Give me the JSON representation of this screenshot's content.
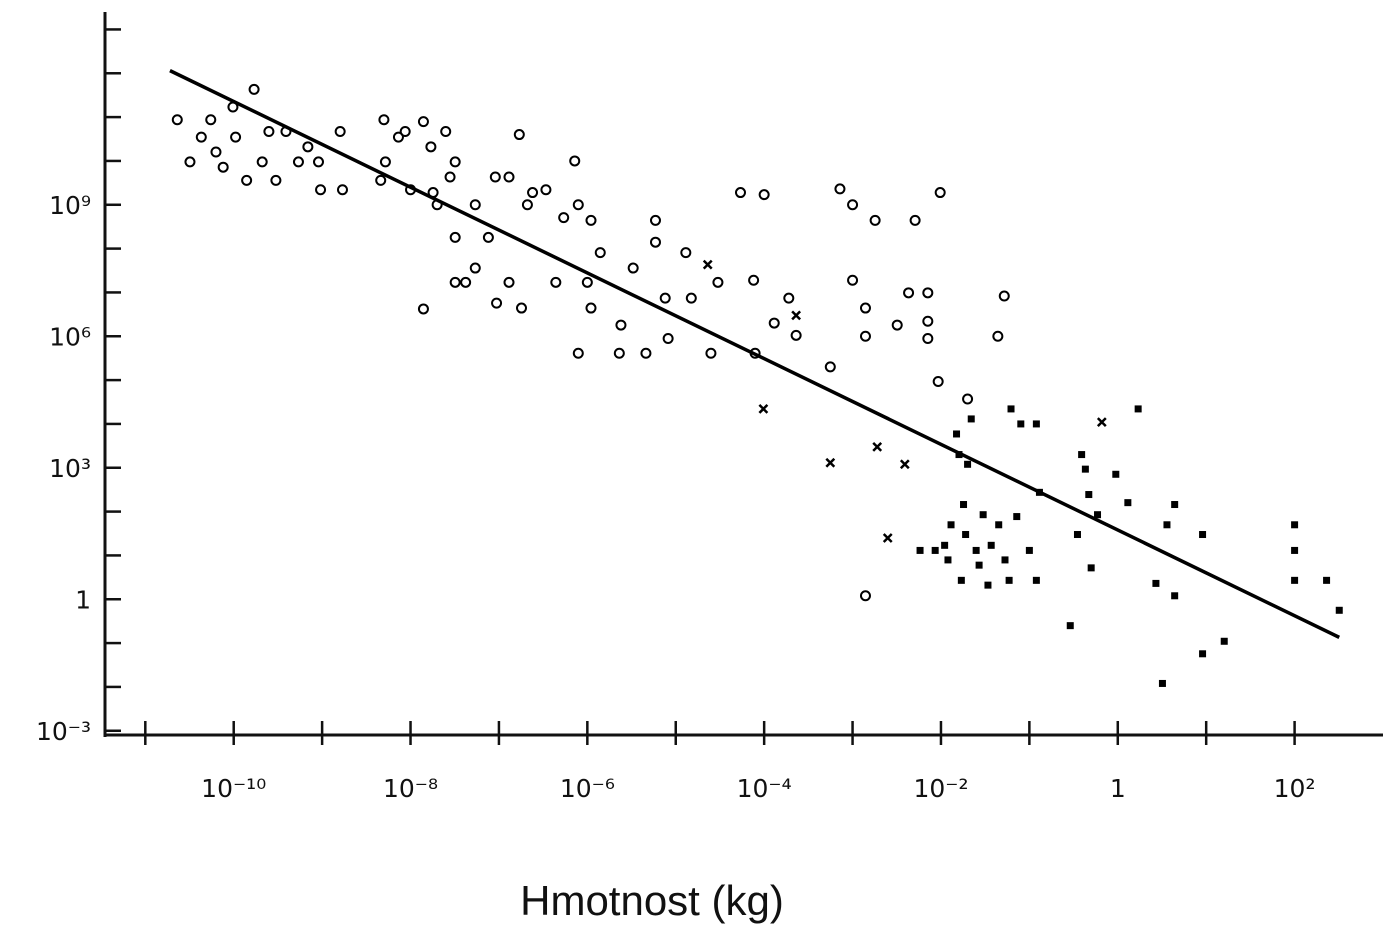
{
  "chart_data": {
    "type": "scatter",
    "xlabel": "Hmotnost (kg)",
    "xscale": "log",
    "yscale": "log",
    "xlim": [
      3.5e-12,
      1000
    ],
    "ylim": [
      0.0008,
      25000000000000.0
    ],
    "xticks": [
      {
        "value": 1e-10,
        "label": "10⁻¹⁰"
      },
      {
        "value": 1e-08,
        "label": "10⁻⁸"
      },
      {
        "value": 1e-06,
        "label": "10⁻⁶"
      },
      {
        "value": 0.0001,
        "label": "10⁻⁴"
      },
      {
        "value": 0.01,
        "label": "10⁻²"
      },
      1,
      {
        "value": 100,
        "label": "10²"
      }
    ],
    "xminor_ticks": [
      1e-11,
      1e-09,
      1e-07,
      1e-05,
      0.001,
      0.1,
      10
    ],
    "yticks": [
      {
        "value": 0.001,
        "label": "10⁻³"
      },
      1,
      {
        "value": 1000,
        "label": "10³"
      },
      {
        "value": 1000000,
        "label": "10⁶"
      },
      {
        "value": 1000000000,
        "label": "10⁹"
      }
    ],
    "yminor_ticks": [
      0.01,
      0.1,
      10,
      100,
      10000,
      100000,
      10000000,
      100000000,
      10000000000.0,
      100000000000.0,
      1000000000000.0,
      10000000000000.0
    ],
    "series": [
      {
        "marker": "circle",
        "color": "#000000",
        "x": [
          2.3e-11,
          3.2e-11,
          4.3e-11,
          5.5e-11,
          6.3e-11,
          7.6e-11,
          9.8e-11,
          1.05e-10,
          1.4e-10,
          1.7e-10,
          2.1e-10,
          2.5e-10,
          3e-10,
          3.9e-10,
          5.4e-10,
          6.9e-10,
          9.1e-10,
          9.6e-10,
          1.6e-09,
          1.7e-09,
          5e-09,
          5.2e-09,
          4.6e-09,
          7.3e-09,
          8.7e-09,
          1e-08,
          1.4e-08,
          1.4e-08,
          1.7e-08,
          1.8e-08,
          2e-08,
          2.5e-08,
          2.8e-08,
          3.2e-08,
          3.2e-08,
          3.2e-08,
          4.2e-08,
          5.4e-08,
          5.4e-08,
          7.6e-08,
          9.1e-08,
          9.4e-08,
          1.3e-07,
          1.3e-07,
          1.7e-07,
          1.8e-07,
          2.1e-07,
          2.4e-07,
          3.4e-07,
          4.4e-07,
          5.4e-07,
          7.2e-07,
          7.9e-07,
          7.9e-07,
          1.1e-06,
          1e-06,
          1.1e-06,
          1.4e-06,
          2.3e-06,
          2.4e-06,
          3.3e-06,
          4.6e-06,
          5.9e-06,
          5.9e-06,
          7.6e-06,
          8.2e-06,
          1.3e-05,
          1.5e-05,
          2.5e-05,
          3e-05,
          5.4e-05,
          7.6e-05,
          7.9e-05,
          0.0001,
          0.00013,
          0.00019,
          0.00023,
          0.00056,
          0.00072,
          0.001,
          0.001,
          0.0014,
          0.0014,
          0.0014,
          0.0018,
          0.0032,
          0.0043,
          0.0051,
          0.0071,
          0.0071,
          0.0071,
          0.0093,
          0.0098,
          0.02,
          0.044,
          0.052
        ],
        "values": [
          87000000000.0,
          9500000000.0,
          35000000000.0,
          87000000000.0,
          16000000000.0,
          7200000000.0,
          170000000000.0,
          35000000000.0,
          3600000000.0,
          430000000000.0,
          9500000000.0,
          47000000000.0,
          3600000000.0,
          47000000000.0,
          9500000000.0,
          21000000000.0,
          9500000000.0,
          2200000000.0,
          47000000000.0,
          2200000000.0,
          87000000000.0,
          9500000000.0,
          3600000000.0,
          35000000000.0,
          47000000000.0,
          2200000000.0,
          79000000000.0,
          4200000,
          21000000000.0,
          1900000000.0,
          1000000000.0,
          47000000000.0,
          4300000000.0,
          9500000000.0,
          180000000,
          17000000,
          17000000,
          1000000000.0,
          36000000,
          180000000,
          4300000000.0,
          5700000,
          4300000000.0,
          17000000,
          40000000000.0,
          4400000,
          1000000000.0,
          1900000000.0,
          2200000000.0,
          17000000,
          510000000,
          10000000000.0,
          1000000000.0,
          410000,
          440000000,
          17000000,
          4400000,
          81000000,
          410000,
          1800000,
          36000000,
          410000,
          440000000,
          140000000,
          7400000,
          890000,
          81000000,
          7400000,
          410000,
          17000000,
          1900000000.0,
          19000000,
          410000,
          1700000000.0,
          2000000,
          7400000,
          1050000,
          200000,
          2300000000.0,
          1000000000.0,
          19000000,
          4400000,
          1000000,
          1.2,
          440000000,
          1800000,
          9800000,
          440000000,
          9800000,
          2200000,
          890000,
          93000,
          1900000000.0,
          37000,
          1000000,
          8300000
        ]
      },
      {
        "marker": "cross",
        "color": "#000000",
        "x": [
          2.3e-05,
          9.8e-05,
          0.00023,
          0.00056,
          0.0019,
          0.0039,
          0.0025,
          0.66
        ],
        "values": [
          43000000,
          22000,
          3000000,
          1300,
          3000,
          1200,
          25,
          11000
        ]
      },
      {
        "marker": "dot",
        "color": "#000000",
        "x": [
          0.0058,
          0.0086,
          0.011,
          0.012,
          0.013,
          0.015,
          0.016,
          0.02,
          0.022,
          0.018,
          0.019,
          0.025,
          0.017,
          0.027,
          0.03,
          0.034,
          0.037,
          0.045,
          0.053,
          0.059,
          0.062,
          0.072,
          0.08,
          0.1,
          0.12,
          0.12,
          0.13,
          0.29,
          0.35,
          0.39,
          0.43,
          0.47,
          0.5,
          0.59,
          0.95,
          1.3,
          1.7,
          2.7,
          3.2,
          3.6,
          4.4,
          4.4,
          9.1,
          9.1,
          16,
          100,
          100,
          100,
          230,
          320
        ],
        "values": [
          13,
          13,
          17,
          7.9,
          50,
          5900,
          2000,
          1200,
          13000,
          145,
          30,
          13,
          2.7,
          6,
          85,
          2.1,
          17,
          50,
          7.9,
          2.7,
          22000,
          77,
          10000,
          13,
          2.7,
          10000,
          275,
          0.25,
          30,
          2000,
          930,
          245,
          5.2,
          85,
          710,
          160,
          22000,
          2.3,
          0.012,
          50,
          145,
          1.2,
          30,
          0.057,
          0.11,
          50,
          13,
          2.7,
          2.7,
          0.56
        ]
      },
      {
        "marker": "line",
        "color": "#000000",
        "x": [
          1.9e-11,
          320
        ],
        "values": [
          1150000000000,
          0.135
        ]
      }
    ]
  }
}
